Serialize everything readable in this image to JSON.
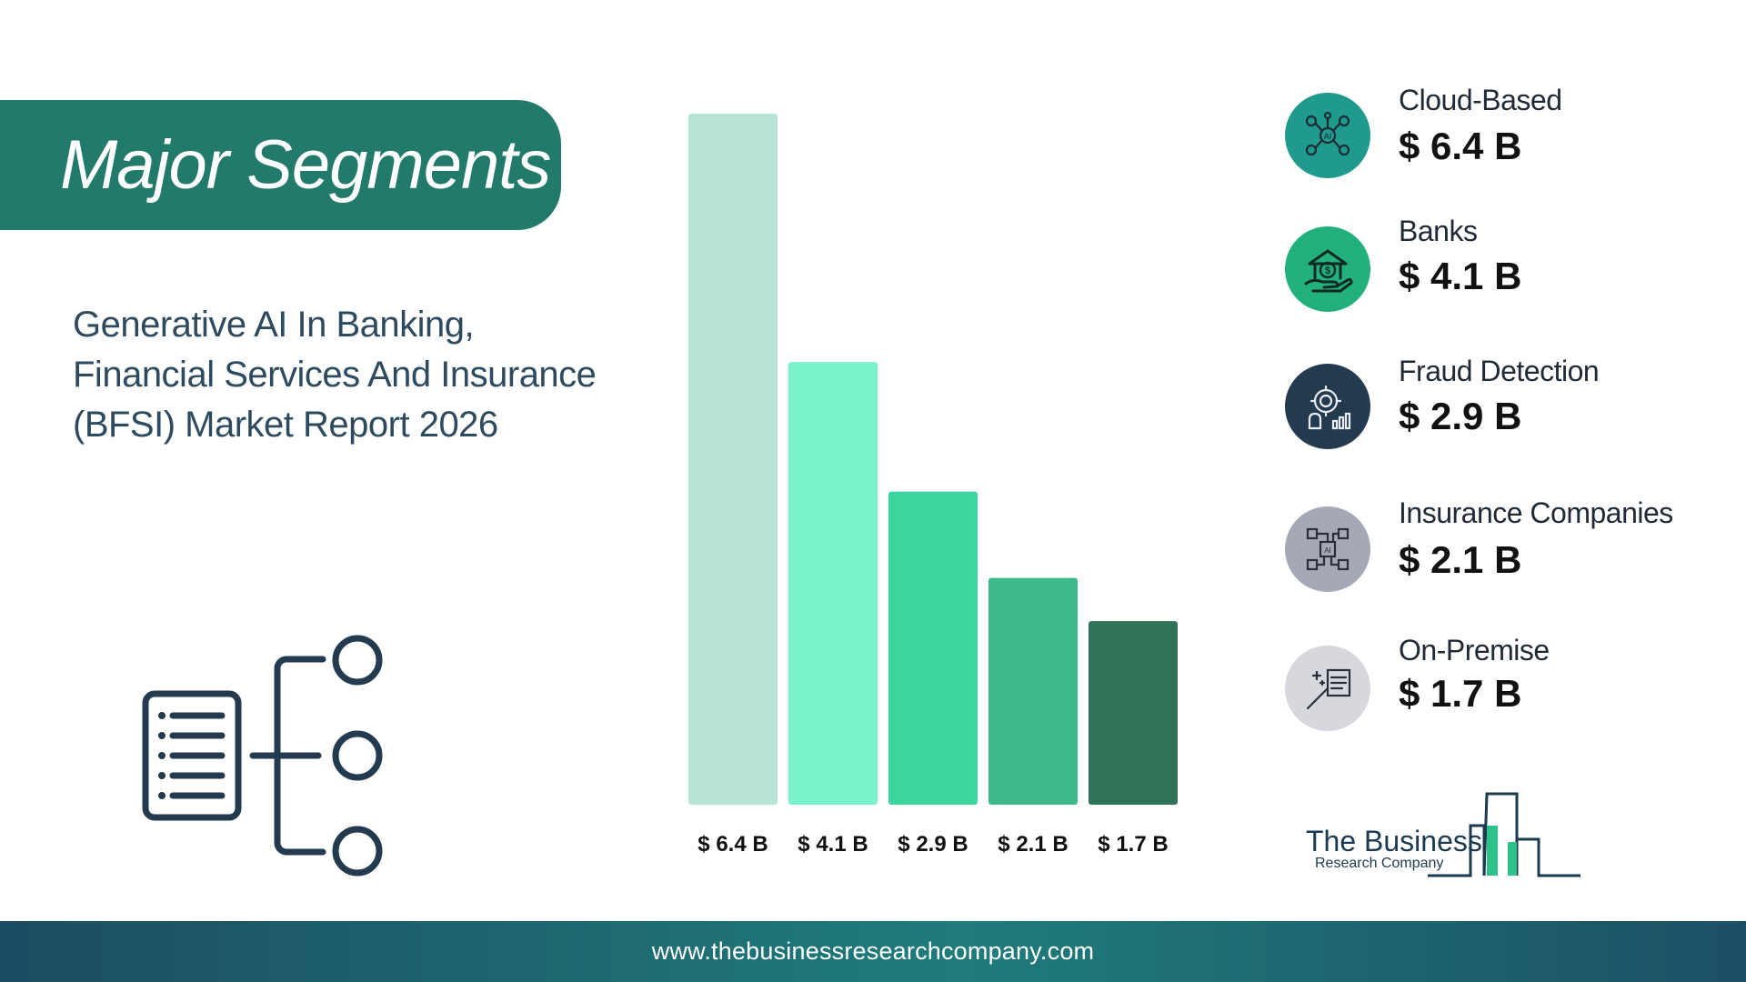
{
  "banner": {
    "title": "Major Segments"
  },
  "report": {
    "lines": [
      "Generative AI In Banking,",
      "Financial Services And Insurance",
      "(BFSI) Market Report 2026"
    ]
  },
  "chart_data": {
    "type": "bar",
    "categories": [
      "Cloud-Based",
      "Banks",
      "Fraud Detection",
      "Insurance Companies",
      "On-Premise"
    ],
    "values": [
      6.4,
      4.1,
      2.9,
      2.1,
      1.7
    ],
    "value_labels": [
      "$ 6.4 B",
      "$ 4.1 B",
      "$ 2.9 B",
      "$ 2.1 B",
      "$ 1.7 B"
    ],
    "bar_colors": [
      "#b8e4d4",
      "#78f4c8",
      "#3ed69e",
      "#3cb88a",
      "#2e7258"
    ],
    "ylim": [
      0,
      6.4
    ],
    "grid": false,
    "legend": "right"
  },
  "segments": [
    {
      "label": "Cloud-Based",
      "value": "$ 6.4 B",
      "icon": "ai-network-icon",
      "color": "#1f9a8c"
    },
    {
      "label": "Banks",
      "value": "$ 4.1 B",
      "icon": "bank-hand-icon",
      "color": "#22b07d"
    },
    {
      "label": "Fraud Detection",
      "value": "$ 2.9 B",
      "icon": "fraud-gear-icon",
      "color": "#233a4f"
    },
    {
      "label": "Insurance Companies",
      "value": "$ 2.1 B",
      "icon": "ai-chip-icon",
      "color": "#a5a9b6"
    },
    {
      "label": "On-Premise",
      "value": "$ 1.7 B",
      "icon": "magic-wand-icon",
      "color": "#d6d8de"
    }
  ],
  "logo": {
    "line1": "The Business",
    "line2": "Research Company"
  },
  "footer": {
    "url": "www.thebusinessresearchcompany.com"
  }
}
